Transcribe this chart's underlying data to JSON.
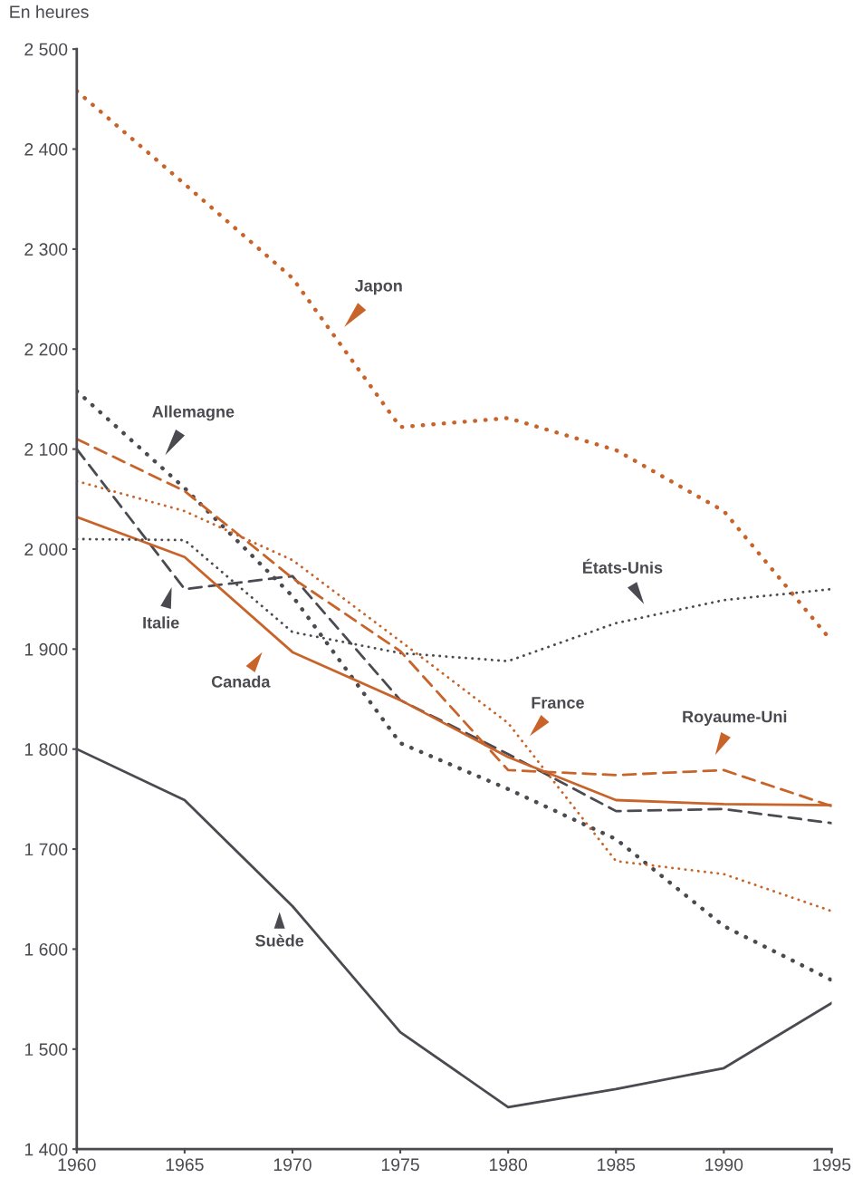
{
  "chart_data": {
    "type": "line",
    "ylabel": "En heures",
    "x": [
      1960,
      1965,
      1970,
      1975,
      1980,
      1985,
      1990,
      1995
    ],
    "xlim": [
      1960,
      1995
    ],
    "xticks": [
      1960,
      1965,
      1970,
      1975,
      1980,
      1985,
      1990,
      1995
    ],
    "ylim": [
      1400,
      2500
    ],
    "yticks": [
      {
        "value": 1400,
        "label": "1 400"
      },
      {
        "value": 1500,
        "label": "1 500"
      },
      {
        "value": 1600,
        "label": "1 600"
      },
      {
        "value": 1700,
        "label": "1 700"
      },
      {
        "value": 1800,
        "label": "1 800"
      },
      {
        "value": 1900,
        "label": "1 900"
      },
      {
        "value": 2000,
        "label": "2 000"
      },
      {
        "value": 2100,
        "label": "2 100"
      },
      {
        "value": 2200,
        "label": "2 200"
      },
      {
        "value": 2300,
        "label": "2 300"
      },
      {
        "value": 2400,
        "label": "2 400"
      },
      {
        "value": 2500,
        "label": "2 500"
      }
    ],
    "grid": false,
    "legend": "left",
    "series": [
      {
        "name": "Japon",
        "color": "#c8642a",
        "line_style": "dotted",
        "values": [
          2458,
          2365,
          2271,
          2122,
          2131,
          2099,
          2038,
          1908
        ]
      },
      {
        "name": "Allemagne",
        "color": "#4a4a50",
        "line_style": "dotted",
        "values": [
          2158,
          2061,
          1953,
          1806,
          1760,
          1710,
          1623,
          1569
        ]
      },
      {
        "name": "Italie",
        "color": "#4a4a50",
        "line_style": "dashed",
        "values": [
          2100,
          1960,
          1973,
          1849,
          1795,
          1738,
          1740,
          1726
        ]
      },
      {
        "name": "Canada",
        "color": "#c8642a",
        "line_style": "solid",
        "values": [
          2032,
          1992,
          1897,
          1849,
          1792,
          1749,
          1745,
          1744
        ]
      },
      {
        "name": "France",
        "color": "#c8642a",
        "line_style": "dotted",
        "values": [
          2068,
          2038,
          1989,
          1908,
          1826,
          1688,
          1675,
          1638
        ]
      },
      {
        "name": "États-Unis",
        "color": "#4a4a50",
        "line_style": "dotted",
        "values": [
          2010,
          2009,
          1917,
          1896,
          1888,
          1926,
          1949,
          1960
        ]
      },
      {
        "name": "Royaume-Uni",
        "color": "#c8642a",
        "line_style": "dashed",
        "values": [
          2110,
          2058,
          1971,
          1898,
          1779,
          1774,
          1779,
          1743
        ]
      },
      {
        "name": "Suède",
        "color": "#4a4a50",
        "line_style": "solid",
        "values": [
          1800,
          1749,
          1643,
          1517,
          1442,
          1460,
          1481,
          1546
        ]
      }
    ]
  }
}
